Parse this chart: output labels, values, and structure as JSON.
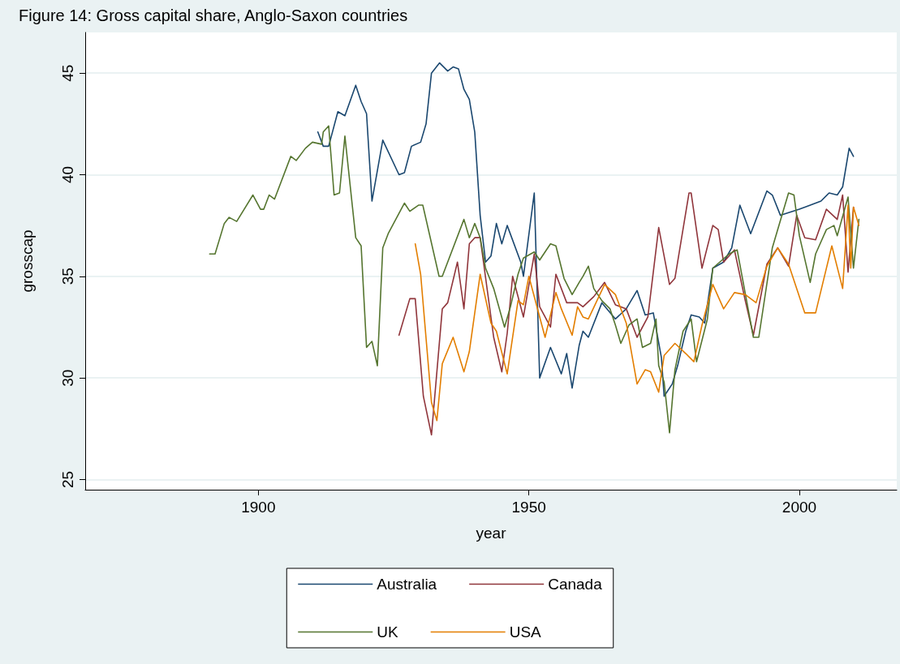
{
  "chart_data": {
    "type": "line",
    "title": "Figure 14: Gross capital share, Anglo-Saxon countries",
    "xlabel": "year",
    "ylabel": "grosscap",
    "xlim": [
      1868,
      2018
    ],
    "ylim": [
      24.5,
      47
    ],
    "xticks": [
      1900,
      1950,
      2000
    ],
    "yticks": [
      25,
      30,
      35,
      40,
      45
    ],
    "grid": "y",
    "legend": "bottom",
    "series": [
      {
        "name": "Australia",
        "color": "#1a476f",
        "x": [
          1911,
          1912,
          1913,
          1914.7,
          1916,
          1918,
          1919,
          1920,
          1921,
          1923,
          1926,
          1927,
          1928.3,
          1930,
          1931,
          1932,
          1933.5,
          1935,
          1936,
          1937,
          1938,
          1939,
          1940,
          1941,
          1942,
          1943,
          1944,
          1945,
          1946,
          1948.5,
          1949,
          1951,
          1952,
          1954,
          1956,
          1957,
          1958,
          1959.3,
          1960,
          1961,
          1963.5,
          1966,
          1968,
          1970,
          1971.5,
          1973,
          1974.5,
          1975,
          1976.5,
          1977.5,
          1979,
          1980,
          1981.5,
          1982.5,
          1984,
          1986,
          1987.5,
          1989,
          1991,
          1994,
          1995,
          1996.5,
          2000,
          2004,
          2005.5,
          2007,
          2008,
          2009.2,
          2010
        ],
        "values": [
          42.1,
          41.4,
          41.4,
          43.1,
          42.9,
          44.4,
          43.6,
          43.0,
          38.7,
          41.7,
          40.0,
          40.1,
          41.4,
          41.6,
          42.5,
          45.0,
          45.5,
          45.1,
          45.3,
          45.2,
          44.2,
          43.7,
          42.1,
          38.0,
          35.7,
          36.0,
          37.6,
          36.6,
          37.5,
          35.7,
          35.0,
          39.1,
          30.0,
          31.5,
          30.2,
          31.2,
          29.5,
          31.6,
          32.3,
          32.0,
          33.7,
          32.9,
          33.4,
          34.3,
          33.1,
          33.2,
          31.0,
          29.1,
          29.7,
          30.6,
          32.3,
          33.1,
          33.0,
          32.7,
          35.4,
          35.7,
          36.4,
          38.5,
          37.1,
          39.2,
          39.0,
          38.0,
          38.3,
          38.7,
          39.1,
          39.0,
          39.4,
          41.3,
          40.9
        ]
      },
      {
        "name": "Canada",
        "color": "#90353b",
        "x": [
          1926,
          1928,
          1929,
          1930.5,
          1932,
          1934,
          1935,
          1936.8,
          1938,
          1939,
          1940,
          1941,
          1943.5,
          1945,
          1946,
          1947,
          1949,
          1951,
          1952,
          1954,
          1955,
          1957,
          1959,
          1960,
          1962,
          1964,
          1966,
          1968,
          1970,
          1972,
          1974,
          1976,
          1977,
          1979.6,
          1980,
          1982,
          1984,
          1985,
          1986,
          1988,
          1990,
          1991.5,
          1994,
          1996,
          1998,
          1999.5,
          2001,
          2003,
          2005,
          2007,
          2008,
          2009,
          2010
        ],
        "values": [
          32.1,
          33.9,
          33.9,
          29.1,
          27.2,
          33.4,
          33.7,
          35.7,
          33.4,
          36.6,
          36.9,
          36.9,
          32.0,
          30.3,
          32.2,
          35.0,
          33.0,
          36.1,
          33.5,
          32.5,
          35.1,
          33.7,
          33.7,
          33.5,
          34.0,
          34.7,
          33.6,
          33.4,
          32.0,
          33.0,
          37.4,
          34.6,
          34.9,
          39.1,
          39.1,
          35.4,
          37.5,
          37.3,
          35.7,
          36.3,
          33.8,
          32.1,
          35.6,
          36.4,
          35.5,
          38.0,
          36.9,
          36.8,
          38.3,
          37.8,
          39.0,
          35.2,
          38.4
        ]
      },
      {
        "name": "UK",
        "color": "#55752f",
        "x": [
          1891,
          1892,
          1893.7,
          1894.6,
          1896,
          1899,
          1900.4,
          1901,
          1902,
          1903,
          1906,
          1907,
          1908.7,
          1910,
          1911.7,
          1912,
          1913,
          1914,
          1915,
          1916,
          1918,
          1919,
          1920,
          1921,
          1922,
          1923,
          1924,
          1927,
          1928,
          1929.6,
          1930.4,
          1933.4,
          1934,
          1938,
          1939,
          1940,
          1941,
          1942,
          1943.5,
          1945.5,
          1946.6,
          1948,
          1949,
          1951,
          1952,
          1954,
          1955,
          1956.5,
          1958,
          1959.3,
          1960,
          1961,
          1962,
          1963.5,
          1965,
          1966,
          1967,
          1968.5,
          1970,
          1971,
          1972.5,
          1973.5,
          1974,
          1975,
          1976,
          1977,
          1978.5,
          1980,
          1981,
          1983,
          1984,
          1987,
          1988.5,
          1991.5,
          1992.5,
          1995,
          1997,
          1998,
          1999,
          2000,
          2002,
          2003,
          2005,
          2006.4,
          2007,
          2009,
          2010,
          2011
        ],
        "values": [
          36.1,
          36.1,
          37.6,
          37.9,
          37.7,
          39.0,
          38.3,
          38.3,
          39.0,
          38.8,
          40.9,
          40.7,
          41.3,
          41.6,
          41.5,
          42.1,
          42.4,
          39.0,
          39.1,
          41.9,
          36.9,
          36.5,
          31.5,
          31.8,
          30.6,
          36.4,
          37.1,
          38.6,
          38.2,
          38.5,
          38.5,
          35.0,
          35.0,
          37.8,
          36.9,
          37.6,
          36.9,
          35.4,
          34.4,
          32.5,
          33.5,
          35.1,
          35.9,
          36.2,
          35.8,
          36.6,
          36.5,
          34.9,
          34.1,
          34.7,
          35.0,
          35.5,
          34.4,
          33.8,
          33.4,
          32.6,
          31.7,
          32.6,
          32.9,
          31.5,
          31.7,
          32.9,
          30.6,
          29.8,
          27.3,
          30.4,
          32.3,
          32.9,
          30.8,
          32.9,
          35.4,
          36.1,
          36.3,
          32.0,
          32.0,
          36.4,
          38.2,
          39.1,
          39.0,
          37.0,
          34.7,
          36.1,
          37.3,
          37.5,
          37.0,
          38.9,
          35.4,
          37.8
        ]
      },
      {
        "name": "USA",
        "color": "#e37e00",
        "x": [
          1929,
          1930,
          1932,
          1933,
          1934,
          1936,
          1938,
          1939,
          1941,
          1943,
          1944,
          1946,
          1948,
          1949,
          1950,
          1952,
          1953,
          1955,
          1956,
          1958,
          1959,
          1960,
          1961,
          1964,
          1966,
          1968,
          1970,
          1971.5,
          1972.5,
          1974,
          1975,
          1977,
          1979,
          1980.5,
          1982,
          1984,
          1986,
          1988,
          1990,
          1992,
          1994,
          1996,
          1998,
          2001,
          2003,
          2006,
          2008,
          2009,
          2009.5,
          2010,
          2011
        ],
        "values": [
          36.6,
          35.1,
          28.8,
          27.9,
          30.7,
          32.0,
          30.3,
          31.3,
          35.1,
          32.7,
          32.3,
          30.2,
          33.8,
          33.6,
          35.0,
          33.0,
          32.0,
          34.2,
          33.4,
          32.1,
          33.5,
          33.0,
          32.9,
          34.6,
          34.1,
          32.7,
          29.7,
          30.4,
          30.3,
          29.3,
          31.1,
          31.7,
          31.2,
          30.8,
          32.6,
          34.6,
          33.4,
          34.2,
          34.1,
          33.7,
          35.5,
          36.4,
          35.6,
          33.2,
          33.2,
          36.5,
          34.4,
          38.5,
          35.4,
          38.4,
          37.5
        ]
      }
    ]
  }
}
